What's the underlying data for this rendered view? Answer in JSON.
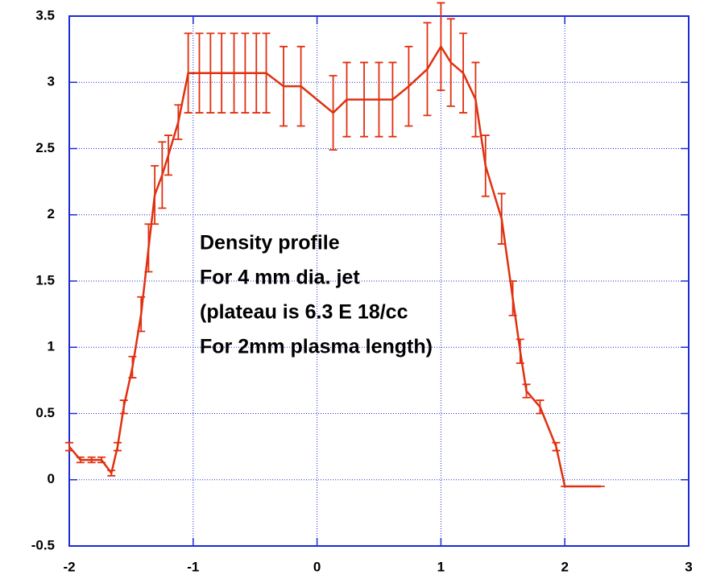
{
  "chart_data": {
    "type": "line",
    "x": [
      -2.0,
      -1.91,
      -1.82,
      -1.74,
      -1.66,
      -1.61,
      -1.56,
      -1.49,
      -1.42,
      -1.36,
      -1.31,
      -1.25,
      -1.2,
      -1.12,
      -1.04,
      -0.95,
      -0.86,
      -0.77,
      -0.67,
      -0.58,
      -0.49,
      -0.41,
      -0.27,
      -0.13,
      0.13,
      0.24,
      0.38,
      0.5,
      0.61,
      0.74,
      0.89,
      1.0,
      1.08,
      1.18,
      1.28,
      1.36,
      1.49,
      1.58,
      1.64,
      1.69,
      1.8,
      1.93,
      2.0,
      2.29
    ],
    "series": [
      {
        "color": "#e03010",
        "values": [
          0.25,
          0.15,
          0.15,
          0.15,
          0.05,
          0.25,
          0.55,
          0.85,
          1.25,
          1.75,
          2.15,
          2.3,
          2.45,
          2.7,
          3.07,
          3.07,
          3.07,
          3.07,
          3.07,
          3.07,
          3.07,
          3.07,
          2.97,
          2.97,
          2.77,
          2.87,
          2.87,
          2.87,
          2.87,
          2.97,
          3.1,
          3.27,
          3.15,
          3.07,
          2.87,
          2.37,
          1.97,
          1.37,
          0.97,
          0.67,
          0.55,
          0.25,
          -0.05,
          -0.05
        ],
        "errors": [
          0.03,
          0.02,
          0.02,
          0.02,
          0.02,
          0.03,
          0.05,
          0.08,
          0.13,
          0.18,
          0.22,
          0.25,
          0.15,
          0.13,
          0.3,
          0.3,
          0.3,
          0.3,
          0.3,
          0.3,
          0.3,
          0.3,
          0.3,
          0.3,
          0.28,
          0.28,
          0.28,
          0.28,
          0.28,
          0.3,
          0.35,
          0.33,
          0.33,
          0.3,
          0.28,
          0.23,
          0.19,
          0.13,
          0.09,
          0.05,
          0.05,
          0.03,
          0,
          0
        ]
      }
    ],
    "xlim": [
      -2,
      3
    ],
    "ylim": [
      -0.5,
      3.5
    ],
    "xticks": [
      -2,
      -1,
      0,
      1,
      2,
      3
    ],
    "yticks": [
      -0.5,
      0,
      0.5,
      1,
      1.5,
      2,
      2.5,
      3,
      3.5
    ],
    "grid": true,
    "axis_color": "#1a2bd6",
    "annotation": [
      "Density profile",
      "For 4 mm dia. jet",
      "(plateau is 6.3 E 18/cc",
      "For 2mm plasma length)"
    ]
  }
}
